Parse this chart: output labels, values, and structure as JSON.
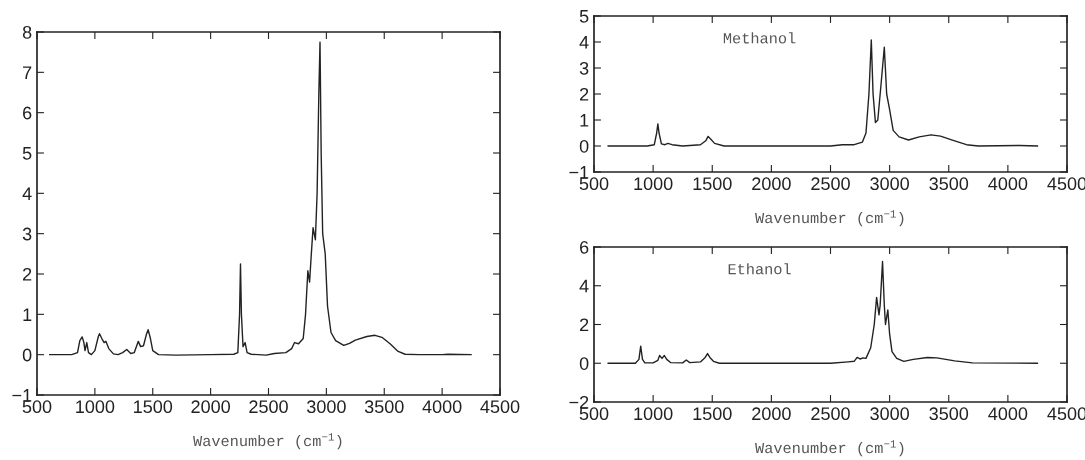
{
  "chart_data": [
    {
      "type": "line",
      "xlabel": "Wavenumber (cm$^{−1}$)",
      "xlim": [
        500,
        4500
      ],
      "xticks": [
        500,
        1000,
        1500,
        2000,
        2500,
        3000,
        3500,
        4000,
        4500
      ],
      "ylim": [
        -1,
        8
      ],
      "yticks": [
        -1,
        0,
        1,
        2,
        3,
        4,
        5,
        6,
        7,
        8
      ],
      "grid": false,
      "marker": "none",
      "line_style": "solid",
      "series": [
        {
          "color": "#222222",
          "x": [
            610,
            800,
            850,
            870,
            890,
            905,
            915,
            930,
            945,
            970,
            1000,
            1030,
            1040,
            1060,
            1080,
            1095,
            1120,
            1160,
            1200,
            1240,
            1275,
            1310,
            1340,
            1375,
            1395,
            1420,
            1445,
            1460,
            1480,
            1500,
            1550,
            1700,
            2000,
            2200,
            2235,
            2250,
            2258,
            2266,
            2280,
            2298,
            2315,
            2350,
            2480,
            2550,
            2650,
            2700,
            2725,
            2760,
            2800,
            2820,
            2840,
            2855,
            2870,
            2885,
            2905,
            2920,
            2935,
            2945,
            2955,
            2968,
            2990,
            3010,
            3040,
            3080,
            3150,
            3200,
            3250,
            3350,
            3420,
            3480,
            3550,
            3620,
            3680,
            3800,
            4000,
            4050,
            4250
          ],
          "values": [
            0,
            0,
            0.05,
            0.35,
            0.44,
            0.3,
            0.1,
            0.3,
            0.05,
            0,
            0.1,
            0.45,
            0.52,
            0.4,
            0.3,
            0.33,
            0.15,
            0.02,
            0,
            0.05,
            0.13,
            0.03,
            0.05,
            0.33,
            0.2,
            0.22,
            0.5,
            0.62,
            0.4,
            0.1,
            0,
            -0.01,
            0,
            0.01,
            0.05,
            1.0,
            2.25,
            1.0,
            0.2,
            0.3,
            0.05,
            0.01,
            -0.01,
            0.03,
            0.05,
            0.15,
            0.3,
            0.27,
            0.4,
            1.0,
            2.08,
            1.8,
            2.5,
            3.15,
            2.85,
            4.0,
            6.5,
            7.75,
            5.0,
            3.0,
            2.5,
            1.2,
            0.55,
            0.35,
            0.23,
            0.28,
            0.36,
            0.45,
            0.48,
            0.43,
            0.27,
            0.08,
            0.01,
            0,
            0,
            0.01,
            0
          ]
        }
      ]
    },
    {
      "type": "line",
      "xlabel": "Wavenumber (cm$^{−1}$)",
      "xlim": [
        500,
        4500
      ],
      "xticks": [
        500,
        1000,
        1500,
        2000,
        2500,
        3000,
        3500,
        4000,
        4500
      ],
      "ylim": [
        -1,
        5
      ],
      "yticks": [
        -1,
        0,
        1,
        2,
        3,
        4,
        5
      ],
      "grid": false,
      "marker": "none",
      "line_style": "solid",
      "annotations": [
        "Methanol"
      ],
      "series": [
        {
          "color": "#222222",
          "x": [
            620,
            950,
            1010,
            1030,
            1040,
            1050,
            1070,
            1100,
            1125,
            1160,
            1250,
            1400,
            1445,
            1465,
            1490,
            1520,
            1600,
            2000,
            2500,
            2600,
            2700,
            2770,
            2800,
            2825,
            2845,
            2860,
            2880,
            2900,
            2930,
            2955,
            2975,
            3000,
            3030,
            3080,
            3160,
            3250,
            3350,
            3430,
            3550,
            3650,
            3750,
            4100,
            4250
          ],
          "values": [
            0,
            0,
            0.05,
            0.5,
            0.85,
            0.5,
            0.08,
            0.05,
            0.1,
            0.05,
            0,
            0.05,
            0.2,
            0.37,
            0.25,
            0.1,
            0,
            0,
            0,
            0.05,
            0.05,
            0.15,
            0.5,
            2.0,
            4.08,
            2.0,
            0.9,
            1.0,
            2.5,
            3.8,
            2.0,
            1.4,
            0.6,
            0.35,
            0.23,
            0.35,
            0.43,
            0.38,
            0.2,
            0.05,
            0,
            0.02,
            0
          ]
        }
      ]
    },
    {
      "type": "line",
      "xlabel": "Wavenumber (cm$^{−1}$)",
      "xlim": [
        500,
        4500
      ],
      "xticks": [
        500,
        1000,
        1500,
        2000,
        2500,
        3000,
        3500,
        4000,
        4500
      ],
      "ylim": [
        -2,
        6
      ],
      "yticks": [
        -2,
        0,
        2,
        4,
        6
      ],
      "grid": false,
      "marker": "none",
      "line_style": "solid",
      "annotations": [
        "Ethanol"
      ],
      "series": [
        {
          "color": "#222222",
          "x": [
            620,
            850,
            880,
            895,
            910,
            930,
            1000,
            1040,
            1055,
            1075,
            1095,
            1115,
            1150,
            1250,
            1280,
            1310,
            1400,
            1440,
            1460,
            1480,
            1510,
            1560,
            2500,
            2650,
            2700,
            2725,
            2750,
            2775,
            2800,
            2840,
            2870,
            2890,
            2910,
            2920,
            2940,
            2955,
            2965,
            2985,
            3000,
            3020,
            3060,
            3120,
            3200,
            3320,
            3400,
            3550,
            3700,
            4250
          ],
          "values": [
            0,
            0,
            0.2,
            0.88,
            0.2,
            0.02,
            0.02,
            0.15,
            0.4,
            0.25,
            0.4,
            0.2,
            0.03,
            0.02,
            0.17,
            0.03,
            0.07,
            0.3,
            0.5,
            0.3,
            0.1,
            0,
            0,
            0.07,
            0.1,
            0.3,
            0.22,
            0.28,
            0.25,
            0.8,
            2.0,
            3.4,
            2.5,
            3.0,
            5.25,
            3.0,
            2.0,
            2.75,
            1.5,
            0.6,
            0.25,
            0.1,
            0.2,
            0.3,
            0.28,
            0.12,
            0.02,
            0
          ]
        }
      ]
    }
  ]
}
